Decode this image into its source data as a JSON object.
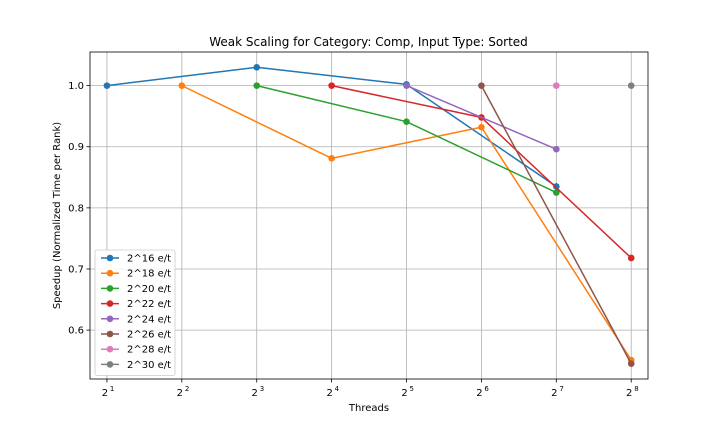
{
  "chart_data": {
    "type": "line",
    "title": "Weak Scaling for Category: Comp, Input Type: Sorted",
    "xlabel": "Threads",
    "ylabel": "Speedup (Normalized Time per Rank)",
    "x_scale": "log2",
    "x_ticks": [
      {
        "value": 2,
        "base": "2",
        "exp": "1"
      },
      {
        "value": 4,
        "base": "2",
        "exp": "2"
      },
      {
        "value": 8,
        "base": "2",
        "exp": "3"
      },
      {
        "value": 16,
        "base": "2",
        "exp": "4"
      },
      {
        "value": 32,
        "base": "2",
        "exp": "5"
      },
      {
        "value": 64,
        "base": "2",
        "exp": "6"
      },
      {
        "value": 128,
        "base": "2",
        "exp": "7"
      },
      {
        "value": 256,
        "base": "2",
        "exp": "8"
      }
    ],
    "y_ticks": [
      "0.6",
      "0.7",
      "0.8",
      "0.9",
      "1.0"
    ],
    "ylim": [
      0.52,
      1.055
    ],
    "xlim": [
      1.71,
      299
    ],
    "grid": true,
    "legend_position": "lower-left",
    "series": [
      {
        "name": "2^16 e/t",
        "color": "#1f77b4",
        "x": [
          2,
          8,
          32,
          128
        ],
        "y": [
          1.0,
          1.03,
          1.002,
          0.835
        ]
      },
      {
        "name": "2^18 e/t",
        "color": "#ff7f0e",
        "x": [
          4,
          16,
          64,
          256
        ],
        "y": [
          1.0,
          0.881,
          0.932,
          0.551
        ]
      },
      {
        "name": "2^20 e/t",
        "color": "#2ca02c",
        "x": [
          8,
          32,
          128
        ],
        "y": [
          1.0,
          0.941,
          0.825
        ]
      },
      {
        "name": "2^22 e/t",
        "color": "#d62728",
        "x": [
          16,
          64,
          256
        ],
        "y": [
          1.0,
          0.948,
          0.718
        ]
      },
      {
        "name": "2^24 e/t",
        "color": "#9467bd",
        "x": [
          32,
          128
        ],
        "y": [
          1.0,
          0.896
        ]
      },
      {
        "name": "2^26 e/t",
        "color": "#8c564b",
        "x": [
          64,
          256
        ],
        "y": [
          1.0,
          0.545
        ]
      },
      {
        "name": "2^28 e/t",
        "color": "#e377c2",
        "x": [
          128
        ],
        "y": [
          1.0
        ]
      },
      {
        "name": "2^30 e/t",
        "color": "#7f7f7f",
        "x": [
          256
        ],
        "y": [
          1.0
        ]
      }
    ]
  }
}
